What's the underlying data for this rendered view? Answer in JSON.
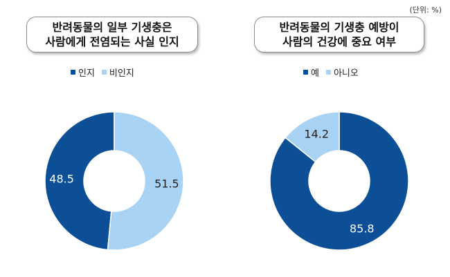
{
  "unit_label": "(단위: %)",
  "colors": {
    "dark": "#0d4f96",
    "light": "#a8d3f5"
  },
  "chart_data": [
    {
      "type": "pie",
      "title_lines": [
        "반려동물의 일부 기생충은",
        "사람에게 전염되는 사실 인지"
      ],
      "categories": [
        "인지",
        "비인지"
      ],
      "values": [
        48.5,
        51.5
      ],
      "value_labels": [
        "48.5",
        "51.5"
      ],
      "legend": "top",
      "donut": true
    },
    {
      "type": "pie",
      "title_lines": [
        "반려동물의 기생충 예방이",
        "사람의 건강에 중요 여부"
      ],
      "categories": [
        "예",
        "아니오"
      ],
      "values": [
        85.8,
        14.2
      ],
      "value_labels": [
        "85.8",
        "14.2"
      ],
      "legend": "top",
      "donut": true
    }
  ]
}
